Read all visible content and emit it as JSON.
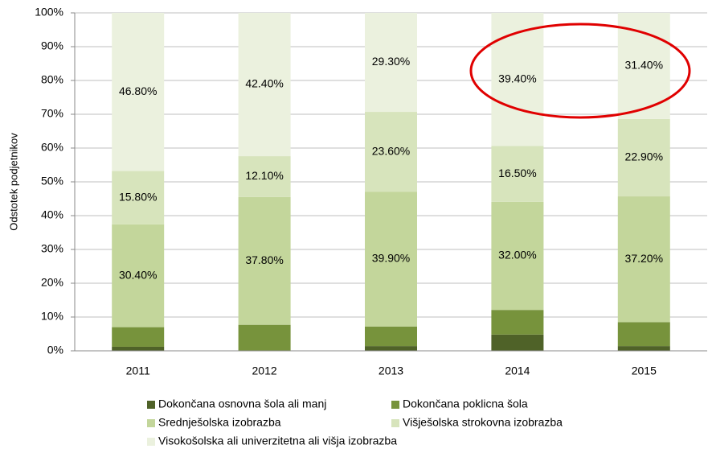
{
  "chart_data": {
    "type": "stacked_bar",
    "y_label": "Odstotek podjetnikov",
    "categories": [
      "2011",
      "2012",
      "2013",
      "2014",
      "2015"
    ],
    "series": [
      {
        "name": "Dokončana osnovna šola ali manj",
        "color": "#4f6228",
        "values": [
          1.2,
          0,
          1.4,
          4.8,
          1.4
        ]
      },
      {
        "name": "Dokončana poklicna šola",
        "color": "#77933c",
        "values": [
          5.8,
          7.7,
          5.8,
          7.3,
          7.1
        ]
      },
      {
        "name": "Srednješolska izobrazba",
        "color": "#c3d69b",
        "values": [
          30.4,
          37.8,
          39.9,
          32.0,
          37.2
        ],
        "value_labels": [
          "30.40%",
          "37.80%",
          "39.90%",
          "32.00%",
          "37.20%"
        ]
      },
      {
        "name": "Višješolska strokovna izobrazba",
        "color": "#d7e4bc",
        "values": [
          15.8,
          12.1,
          23.6,
          16.5,
          22.9
        ],
        "value_labels": [
          "15.80%",
          "12.10%",
          "23.60%",
          "16.50%",
          "22.90%"
        ]
      },
      {
        "name": "Visokošolska ali univerzitetna ali višja izobrazba",
        "color": "#ebf1de",
        "values": [
          46.8,
          42.4,
          29.3,
          39.4,
          31.4
        ],
        "value_labels": [
          "46.80%",
          "42.40%",
          "29.30%",
          "39.40%",
          "31.40%"
        ]
      }
    ],
    "ylim": [
      0,
      100
    ],
    "yticks": [
      {
        "value": 0,
        "label": "0%"
      },
      {
        "value": 10,
        "label": "10%"
      },
      {
        "value": 20,
        "label": "20%"
      },
      {
        "value": 30,
        "label": "30%"
      },
      {
        "value": 40,
        "label": "40%"
      },
      {
        "value": 50,
        "label": "50%"
      },
      {
        "value": 60,
        "label": "60%"
      },
      {
        "value": 70,
        "label": "70%"
      },
      {
        "value": 80,
        "label": "80%"
      },
      {
        "value": 90,
        "label": "90%"
      },
      {
        "value": 100,
        "label": "100%"
      }
    ],
    "grid": true
  }
}
